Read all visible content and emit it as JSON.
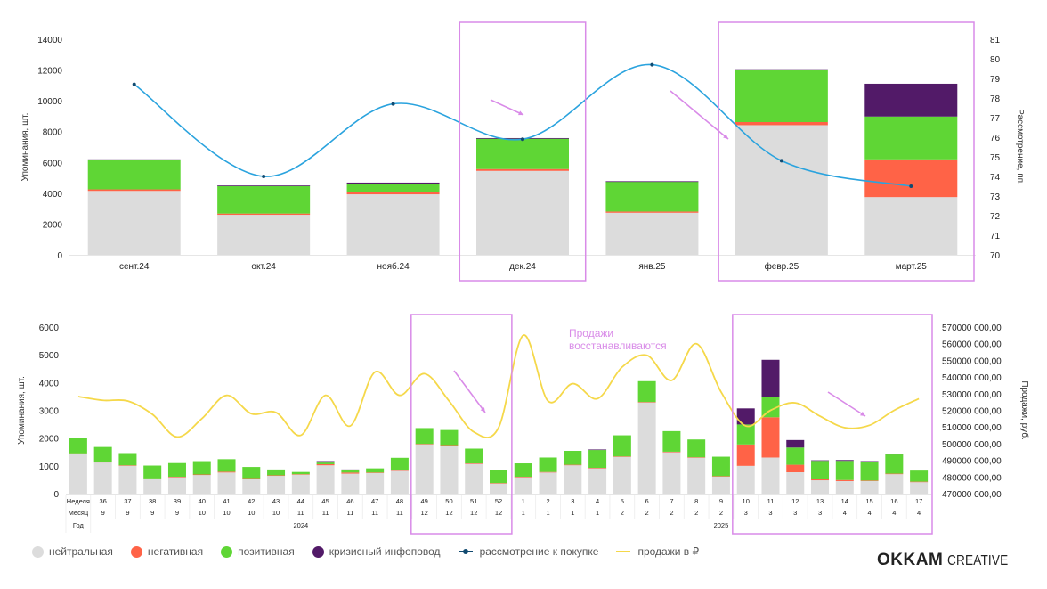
{
  "colors": {
    "neutral": "#dcdcdc",
    "negative": "#ff6347",
    "positive": "#5fd635",
    "crisis": "#521a68",
    "consideration": "#2aa3de",
    "consideration_marker": "#114a70",
    "sales": "#f5d84a",
    "highlight": "#d98be8"
  },
  "legend": [
    {
      "key": "neutral",
      "label": "нейтральная",
      "kind": "dot"
    },
    {
      "key": "negative",
      "label": "негативная",
      "kind": "dot"
    },
    {
      "key": "positive",
      "label": "позитивная",
      "kind": "dot"
    },
    {
      "key": "crisis",
      "label": "кризисный инфоповод",
      "kind": "dot"
    },
    {
      "key": "consideration",
      "label": "рассмотрение к покупке",
      "kind": "line-marker"
    },
    {
      "key": "sales",
      "label": "продажи в ₽",
      "kind": "line"
    }
  ],
  "brand": {
    "bold": "OKKAM",
    "light": "CREATIVE"
  },
  "chart_data": [
    {
      "type": "bar",
      "stacked": true,
      "title": "",
      "xlabel": "",
      "ylabel": "Упоминания, шт.",
      "ylim": [
        0,
        14000
      ],
      "yticks": [
        0,
        2000,
        4000,
        6000,
        8000,
        10000,
        12000,
        14000
      ],
      "y2label": "Рассмотрение, пп.",
      "y2lim": [
        70,
        81
      ],
      "y2ticks": [
        70,
        71,
        72,
        73,
        74,
        75,
        76,
        77,
        78,
        79,
        80,
        81
      ],
      "categories": [
        "сент.24",
        "окт.24",
        "нояб.24",
        "дек.24",
        "янв.25",
        "февр.25",
        "март.25"
      ],
      "series": [
        {
          "name": "нейтральная",
          "key": "neutral",
          "values": [
            4150,
            2600,
            3930,
            5450,
            2730,
            8420,
            3750
          ]
        },
        {
          "name": "негативная",
          "key": "negative",
          "values": [
            100,
            80,
            120,
            120,
            80,
            200,
            2450
          ]
        },
        {
          "name": "позитивная",
          "key": "positive",
          "values": [
            1930,
            1800,
            520,
            1970,
            1940,
            3380,
            2780
          ]
        },
        {
          "name": "кризисный инфоповод",
          "key": "crisis",
          "values": [
            20,
            20,
            120,
            40,
            30,
            50,
            2130
          ]
        }
      ],
      "line_series": [
        {
          "name": "рассмотрение к покупке",
          "key": "consideration",
          "axis": "right",
          "values": [
            78.7,
            74.0,
            77.7,
            75.9,
            79.7,
            74.8,
            73.5
          ]
        }
      ],
      "highlights": [
        {
          "from": "дек.24",
          "to": "дек.24"
        },
        {
          "from": "февр.25",
          "to": "март.25"
        }
      ]
    },
    {
      "type": "bar",
      "stacked": true,
      "title": "",
      "xlabel": "",
      "ylabel": "Упоминания, шт.",
      "ylim": [
        0,
        6000
      ],
      "yticks": [
        0,
        1000,
        2000,
        3000,
        4000,
        5000,
        6000
      ],
      "y2label": "Продажи, руб.",
      "y2lim": [
        470000000,
        570000000
      ],
      "y2ticks_labels": [
        "470000 000,00",
        "480000 000,00",
        "490000 000,00",
        "500000 000,00",
        "510000 000,00",
        "520000 000,00",
        "530000 000,00",
        "540000 000,00",
        "550000 000,00",
        "560000 000,00",
        "570000 000,00"
      ],
      "table": {
        "row_labels": [
          "Неделя",
          "Месяц",
          "Год"
        ],
        "weeks": [
          "",
          "36",
          "37",
          "38",
          "39",
          "40",
          "41",
          "42",
          "43",
          "44",
          "45",
          "46",
          "47",
          "48",
          "49",
          "50",
          "51",
          "52",
          "1",
          "2",
          "3",
          "4",
          "5",
          "6",
          "7",
          "8",
          "9",
          "10",
          "11",
          "12",
          "13",
          "14",
          "15",
          "16",
          "17"
        ],
        "months": [
          "",
          "9",
          "9",
          "9",
          "9",
          "10",
          "10",
          "10",
          "10",
          "11",
          "11",
          "11",
          "11",
          "11",
          "12",
          "12",
          "12",
          "12",
          "1",
          "1",
          "1",
          "1",
          "2",
          "2",
          "2",
          "2",
          "2",
          "3",
          "3",
          "3",
          "3",
          "4",
          "4",
          "4",
          "4"
        ],
        "years": [
          {
            "label": "2024",
            "at_index": 9
          },
          {
            "label": "2025",
            "at_index": 26
          }
        ]
      },
      "series": [
        {
          "name": "нейтральная",
          "key": "neutral",
          "values": [
            1420,
            1130,
            1010,
            540,
            600,
            680,
            760,
            550,
            650,
            680,
            1020,
            720,
            740,
            830,
            1780,
            1740,
            1080,
            370,
            600,
            770,
            1030,
            920,
            1330,
            3290,
            1500,
            1300,
            620,
            1000,
            1300,
            770,
            480,
            450,
            450,
            700,
            420
          ]
        },
        {
          "name": "негативная",
          "key": "negative",
          "values": [
            30,
            10,
            10,
            10,
            10,
            10,
            30,
            10,
            10,
            20,
            40,
            40,
            20,
            10,
            10,
            10,
            10,
            10,
            10,
            10,
            10,
            10,
            10,
            10,
            10,
            10,
            10,
            770,
            1450,
            270,
            40,
            40,
            20,
            20,
            10
          ]
        },
        {
          "name": "позитивная",
          "key": "positive",
          "values": [
            560,
            540,
            440,
            460,
            490,
            480,
            450,
            400,
            210,
            80,
            60,
            80,
            150,
            450,
            570,
            540,
            530,
            460,
            480,
            520,
            500,
            640,
            760,
            750,
            740,
            640,
            700,
            720,
            740,
            620,
            660,
            690,
            680,
            690,
            400
          ]
        },
        {
          "name": "кризисный инфоповод",
          "key": "crisis",
          "values": [
            0,
            0,
            0,
            0,
            0,
            0,
            0,
            0,
            0,
            0,
            50,
            30,
            0,
            0,
            0,
            0,
            0,
            0,
            0,
            0,
            0,
            20,
            0,
            0,
            0,
            0,
            0,
            580,
            1330,
            270,
            20,
            30,
            20,
            20,
            0
          ]
        }
      ],
      "line_series": [
        {
          "name": "продажи в ₽",
          "key": "sales",
          "axis": "right",
          "values": [
            528300000,
            526000000,
            525600000,
            517600000,
            504000000,
            515000000,
            529000000,
            518000000,
            518700000,
            505000000,
            529000000,
            510600000,
            543000000,
            529000000,
            542000000,
            525600000,
            507000000,
            509600000,
            565000000,
            525600000,
            536000000,
            527000000,
            546000000,
            553000000,
            538000000,
            560000000,
            531000000,
            510600000,
            520000000,
            524500000,
            516500000,
            509600000,
            511000000,
            520000000,
            527000000
          ]
        }
      ],
      "annotations": [
        {
          "text_lines": [
            "Продажи",
            "восстанавливаются"
          ]
        }
      ],
      "highlights": [
        {
          "from_index": 14,
          "to_index": 17
        },
        {
          "from_index": 27,
          "to_index": 34
        }
      ]
    }
  ]
}
